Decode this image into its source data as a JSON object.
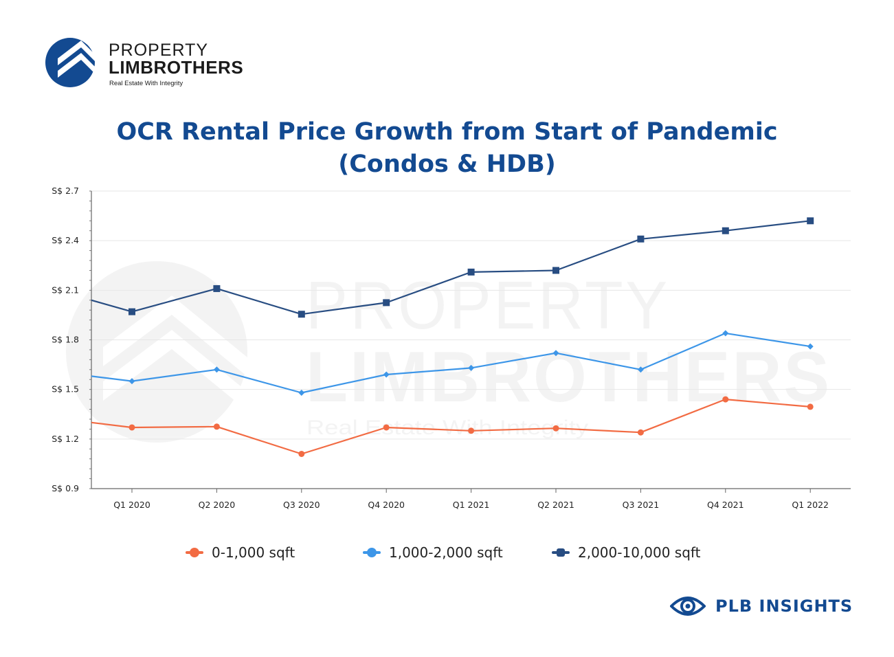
{
  "brand": {
    "line1": "PROPERTY",
    "line2": "LIMBROTHERS",
    "tagline": "Real Estate With Integrity",
    "color": "#134a91"
  },
  "title_lines": [
    "OCR Rental Price Growth from Start of Pandemic",
    "(Condos & HDB)"
  ],
  "footer": {
    "label": "PLB INSIGHTS",
    "icon": "eye-icon"
  },
  "chart_data": {
    "type": "line",
    "title": "OCR Rental Price Growth from Start of Pandemic (Condos & HDB)",
    "xlabel": "",
    "ylabel": "",
    "categories": [
      "Q1 2020",
      "Q2 2020",
      "Q3 2020",
      "Q4 2020",
      "Q1 2021",
      "Q2 2021",
      "Q3 2021",
      "Q4 2021",
      "Q1 2022"
    ],
    "y_ticks": [
      "S$ 0.9",
      "S$ 1.2",
      "S$ 1.5",
      "S$ 1.8",
      "S$ 2.1",
      "S$ 2.4",
      "S$ 2.7"
    ],
    "y_tick_values": [
      0.9,
      1.2,
      1.5,
      1.8,
      2.1,
      2.4,
      2.7
    ],
    "ylim": [
      0.9,
      2.7
    ],
    "grid": true,
    "legend_position": "bottom",
    "series": [
      {
        "name": "0-1,000 sqft",
        "color": "#f26b43",
        "marker": "circle",
        "start_value": 1.3,
        "values": [
          1.27,
          1.275,
          1.11,
          1.27,
          1.25,
          1.265,
          1.24,
          1.44,
          1.395
        ]
      },
      {
        "name": "1,000-2,000 sqft",
        "color": "#3d96e8",
        "marker": "diamond",
        "start_value": 1.58,
        "values": [
          1.55,
          1.62,
          1.48,
          1.59,
          1.63,
          1.72,
          1.62,
          1.84,
          1.76
        ]
      },
      {
        "name": "2,000-10,000 sqft",
        "color": "#284d82",
        "marker": "square",
        "start_value": 2.04,
        "values": [
          1.97,
          2.11,
          1.955,
          2.025,
          2.21,
          2.22,
          2.41,
          2.46,
          2.52
        ]
      }
    ]
  }
}
